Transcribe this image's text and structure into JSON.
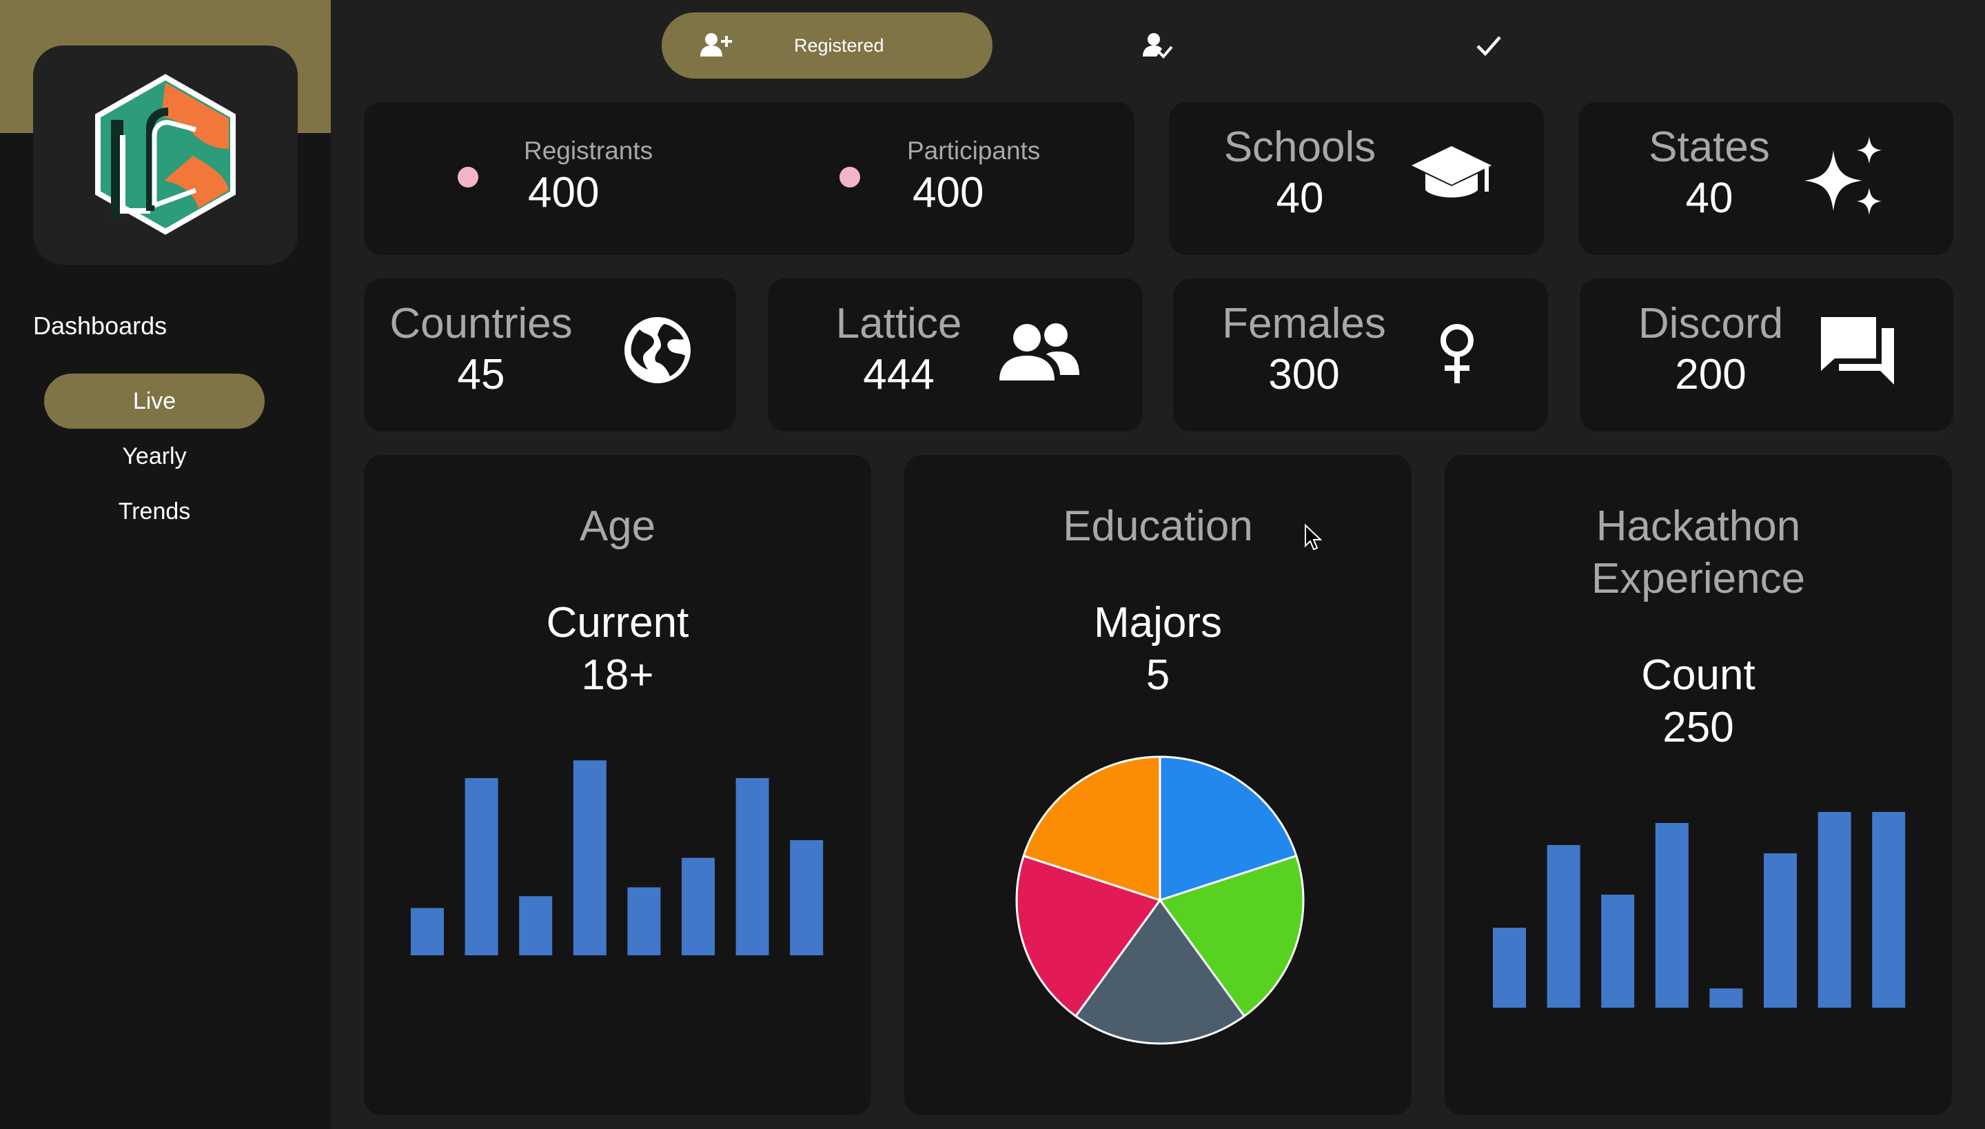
{
  "sidebar": {
    "heading": "Dashboards",
    "items": [
      {
        "label": "Live",
        "active": true
      },
      {
        "label": "Yearly",
        "active": false
      },
      {
        "label": "Trends",
        "active": false
      }
    ]
  },
  "topbar": {
    "tabs": [
      {
        "label": "Registered",
        "icon": "person-add-icon",
        "active": true
      },
      {
        "label": "",
        "icon": "person-check-icon",
        "active": false
      },
      {
        "label": "",
        "icon": "checkmark-icon",
        "active": false
      }
    ]
  },
  "stats": {
    "registrants": {
      "label": "Registrants",
      "value": "400"
    },
    "participants": {
      "label": "Participants",
      "value": "400"
    },
    "schools": {
      "label": "Schools",
      "value": "40",
      "icon": "graduation-cap-icon"
    },
    "states": {
      "label": "States",
      "value": "40",
      "icon": "sparkles-icon"
    },
    "countries": {
      "label": "Countries",
      "value": "45",
      "icon": "globe-icon"
    },
    "lattice": {
      "label": "Lattice",
      "value": "444",
      "icon": "people-icon"
    },
    "females": {
      "label": "Females",
      "value": "300",
      "icon": "female-symbol-icon"
    },
    "discord": {
      "label": "Discord",
      "value": "200",
      "icon": "chat-icon"
    }
  },
  "colors": {
    "accent": "#7f7446",
    "card": "#141415",
    "background": "#1f1f20",
    "bar": "#4178c9",
    "dot": "#f4b6c6"
  },
  "charts": {
    "age": {
      "title": "Age",
      "subtitle_label": "Current",
      "subtitle_value": "18+"
    },
    "education": {
      "title": "Education",
      "subtitle_label": "Majors",
      "subtitle_value": "5"
    },
    "hackathon": {
      "title_line1": "Hackathon",
      "title_line2": "Experience",
      "subtitle_label": "Count",
      "subtitle_value": "250"
    }
  },
  "chart_data": [
    {
      "type": "bar",
      "title": "Age",
      "values": [
        16,
        60,
        20,
        66,
        23,
        33,
        60,
        39
      ],
      "ylim": [
        0,
        70
      ]
    },
    {
      "type": "pie",
      "title": "Education",
      "values": [
        20,
        20,
        20,
        20,
        20
      ],
      "colors": [
        "#2288ee",
        "#58d221",
        "#4c5e6c",
        "#e21b56",
        "#fb8d05"
      ]
    },
    {
      "type": "bar",
      "title": "Hackathon Experience",
      "values": [
        29,
        59,
        41,
        67,
        7,
        56,
        71,
        71
      ],
      "ylim": [
        0,
        75
      ]
    }
  ]
}
